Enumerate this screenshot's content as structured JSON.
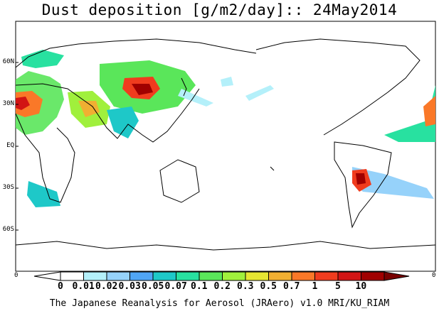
{
  "title": "Dust deposition [g/m2/day]:: 24May2014",
  "lat_labels": [
    "60N",
    "30N",
    "EQ",
    "30S",
    "60S"
  ],
  "edge_labels": {
    "left": "0",
    "right": "0"
  },
  "colorbar": {
    "labels": [
      "0",
      "0.01",
      "0.02",
      "0.03",
      "0.05",
      "0.07",
      "0.1",
      "0.2",
      "0.3",
      "0.5",
      "0.7",
      "1",
      "5",
      "10"
    ],
    "colors": [
      "#ffffff",
      "#b4f0fa",
      "#96d2fa",
      "#50a5f5",
      "#1ec8c8",
      "#28e1a0",
      "#5ae65a",
      "#a0f03c",
      "#e6e632",
      "#f0af32",
      "#fa7828",
      "#f03c1e",
      "#d21414",
      "#a00000",
      "#780000"
    ]
  },
  "footer": "The Japanese Reanalysis for Aerosol (JRAero) v1.0 MRI/KU_RIAM"
}
